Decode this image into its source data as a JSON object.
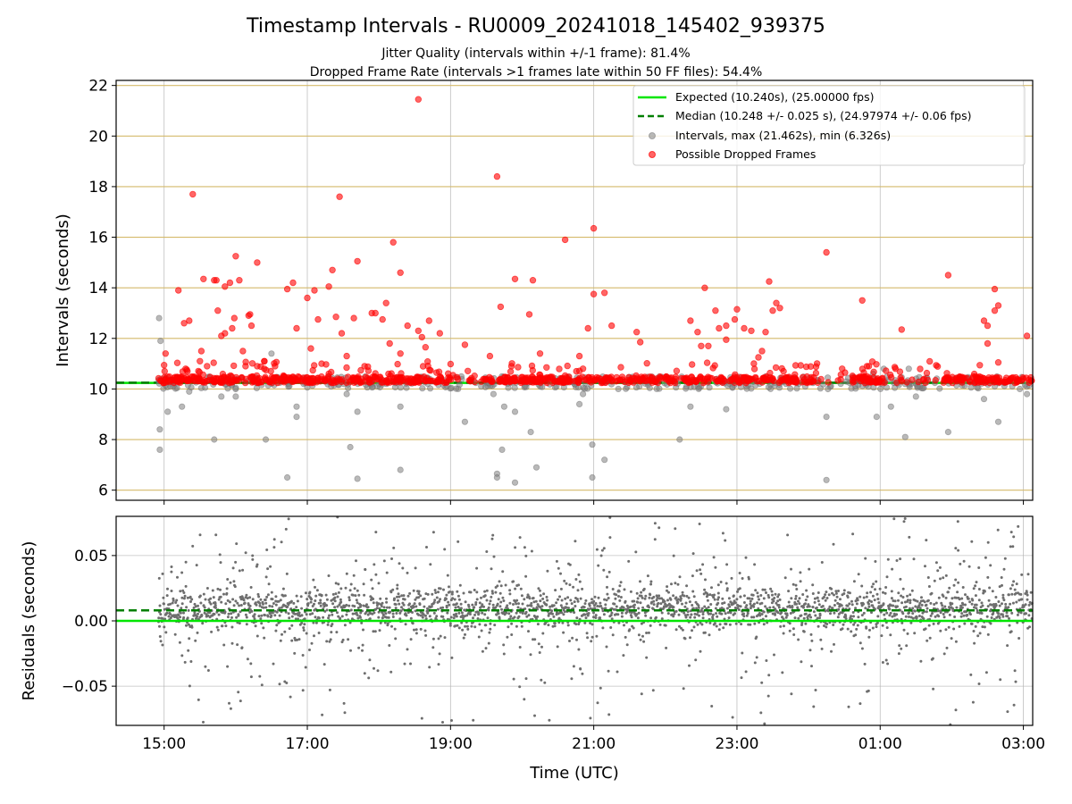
{
  "chart_data": [
    {
      "type": "scatter",
      "title": "Timestamp Intervals - RU0009_20241018_145402_939375",
      "subtitle_lines": [
        "Jitter Quality (intervals within +/-1 frame): 81.4%",
        "Dropped Frame Rate (intervals >1 frames late within 50 FF files): 54.4%"
      ],
      "ylabel": "Intervals (seconds)",
      "xlim_hours": [
        14.33,
        27.13
      ],
      "ylim": [
        5.6,
        22.2
      ],
      "yticks": [
        6,
        8,
        10,
        12,
        14,
        16,
        18,
        20,
        22
      ],
      "ytick_labels": [
        "6",
        "8",
        "10",
        "12",
        "14",
        "16",
        "18",
        "20",
        "22"
      ],
      "ygrid_color": "#d4b96a",
      "xgrid": true,
      "legend_position": "top-right",
      "legend": [
        {
          "label": "Expected (10.240s), (25.00000 fps)",
          "color": "#00e600",
          "style": "solid-line"
        },
        {
          "label": "Median (10.248 +/- 0.025 s), (24.97974 +/- 0.06 fps)",
          "color": "#007f00",
          "style": "dashed-line"
        },
        {
          "label": "Intervals, max (21.462s), min (6.326s)",
          "color": "#808080",
          "style": "marker"
        },
        {
          "label": "Possible Dropped Frames",
          "color": "#ff0000",
          "style": "marker"
        }
      ],
      "expected_interval": 10.24,
      "median_interval": 10.248,
      "dropped_threshold": 10.28,
      "time_range_hours": [
        14.92,
        27.13
      ],
      "max_interval": 21.462,
      "min_interval": 6.326,
      "series": [
        {
          "name": "Intervals, max (21.462s), min (6.326s)",
          "color": "#808080",
          "points": [
            [
              14.93,
              12.8
            ],
            [
              14.95,
              11.9
            ],
            [
              14.94,
              8.4
            ],
            [
              14.94,
              7.6
            ],
            [
              15.05,
              9.1
            ],
            [
              15.25,
              9.3
            ],
            [
              15.35,
              9.9
            ],
            [
              15.7,
              8.0
            ],
            [
              15.8,
              9.7
            ],
            [
              16.0,
              9.7
            ],
            [
              16.42,
              8.0
            ],
            [
              16.5,
              11.4
            ],
            [
              16.72,
              6.5
            ],
            [
              16.85,
              9.3
            ],
            [
              16.85,
              8.9
            ],
            [
              17.55,
              9.8
            ],
            [
              17.6,
              7.7
            ],
            [
              17.7,
              9.1
            ],
            [
              17.7,
              6.45
            ],
            [
              18.3,
              6.8
            ],
            [
              18.3,
              9.3
            ],
            [
              19.2,
              8.7
            ],
            [
              19.6,
              9.8
            ],
            [
              19.65,
              6.65
            ],
            [
              19.65,
              6.5
            ],
            [
              19.72,
              7.6
            ],
            [
              19.75,
              9.3
            ],
            [
              19.9,
              6.3
            ],
            [
              19.9,
              9.1
            ],
            [
              20.12,
              8.3
            ],
            [
              20.2,
              6.9
            ],
            [
              20.8,
              9.4
            ],
            [
              20.85,
              9.8
            ],
            [
              20.98,
              7.8
            ],
            [
              20.98,
              6.5
            ],
            [
              21.15,
              7.2
            ],
            [
              22.2,
              8.0
            ],
            [
              22.35,
              9.3
            ],
            [
              22.85,
              9.2
            ],
            [
              24.25,
              8.9
            ],
            [
              24.25,
              6.4
            ],
            [
              24.65,
              10.4
            ],
            [
              24.9,
              10.6
            ],
            [
              24.95,
              8.9
            ],
            [
              25.05,
              10.8
            ],
            [
              25.15,
              9.3
            ],
            [
              25.35,
              10.2
            ],
            [
              25.4,
              10.8
            ],
            [
              25.5,
              9.7
            ],
            [
              25.35,
              8.1
            ],
            [
              25.95,
              8.3
            ],
            [
              26.45,
              9.6
            ],
            [
              26.65,
              8.7
            ],
            [
              26.95,
              10.0
            ],
            [
              27.05,
              9.8
            ]
          ]
        },
        {
          "name": "Possible Dropped Frames",
          "color": "#ff0000",
          "points": [
            [
              15.02,
              11.4
            ],
            [
              15.2,
              13.9
            ],
            [
              15.28,
              12.6
            ],
            [
              15.3,
              10.8
            ],
            [
              15.35,
              12.7
            ],
            [
              15.4,
              17.7
            ],
            [
              15.5,
              11.1
            ],
            [
              15.52,
              11.5
            ],
            [
              15.55,
              14.35
            ],
            [
              15.6,
              10.9
            ],
            [
              15.7,
              14.3
            ],
            [
              15.73,
              14.3
            ],
            [
              15.75,
              13.1
            ],
            [
              15.8,
              12.1
            ],
            [
              15.85,
              12.2
            ],
            [
              15.85,
              14.05
            ],
            [
              15.92,
              14.2
            ],
            [
              15.95,
              12.4
            ],
            [
              15.98,
              12.8
            ],
            [
              16.0,
              15.25
            ],
            [
              16.05,
              14.3
            ],
            [
              16.1,
              11.5
            ],
            [
              16.18,
              12.9
            ],
            [
              16.2,
              12.95
            ],
            [
              16.22,
              12.5
            ],
            [
              16.3,
              15.0
            ],
            [
              16.3,
              10.9
            ],
            [
              16.4,
              10.8
            ],
            [
              16.4,
              11.1
            ],
            [
              16.55,
              10.9
            ],
            [
              16.72,
              13.95
            ],
            [
              16.8,
              14.2
            ],
            [
              16.85,
              12.4
            ],
            [
              17.0,
              13.6
            ],
            [
              17.05,
              11.6
            ],
            [
              17.1,
              13.9
            ],
            [
              17.15,
              12.75
            ],
            [
              17.2,
              11.0
            ],
            [
              17.3,
              10.6
            ],
            [
              17.3,
              14.05
            ],
            [
              17.35,
              14.7
            ],
            [
              17.4,
              12.85
            ],
            [
              17.45,
              17.6
            ],
            [
              17.48,
              12.2
            ],
            [
              17.55,
              11.3
            ],
            [
              17.65,
              12.8
            ],
            [
              17.7,
              15.05
            ],
            [
              17.8,
              10.9
            ],
            [
              17.9,
              13.0
            ],
            [
              17.95,
              13.0
            ],
            [
              18.05,
              12.75
            ],
            [
              18.1,
              13.4
            ],
            [
              18.15,
              11.8
            ],
            [
              18.2,
              15.8
            ],
            [
              18.3,
              11.4
            ],
            [
              18.3,
              14.6
            ],
            [
              18.4,
              12.5
            ],
            [
              18.55,
              12.3
            ],
            [
              18.55,
              21.45
            ],
            [
              18.6,
              12.05
            ],
            [
              18.65,
              11.65
            ],
            [
              18.7,
              12.7
            ],
            [
              18.85,
              12.2
            ],
            [
              19.2,
              11.75
            ],
            [
              19.55,
              11.3
            ],
            [
              19.65,
              18.4
            ],
            [
              19.7,
              13.25
            ],
            [
              19.85,
              10.9
            ],
            [
              19.9,
              14.35
            ],
            [
              20.1,
              12.95
            ],
            [
              20.15,
              14.3
            ],
            [
              20.25,
              11.4
            ],
            [
              20.6,
              15.9
            ],
            [
              20.8,
              11.3
            ],
            [
              20.85,
              10.8
            ],
            [
              20.92,
              12.4
            ],
            [
              21.0,
              13.75
            ],
            [
              21.0,
              16.35
            ],
            [
              21.15,
              13.8
            ],
            [
              21.25,
              12.5
            ],
            [
              21.6,
              12.25
            ],
            [
              21.65,
              11.85
            ],
            [
              22.35,
              12.7
            ],
            [
              22.45,
              12.25
            ],
            [
              22.5,
              11.7
            ],
            [
              22.55,
              14.0
            ],
            [
              22.6,
              11.7
            ],
            [
              22.7,
              13.1
            ],
            [
              22.75,
              12.4
            ],
            [
              22.85,
              12.5
            ],
            [
              22.85,
              11.95
            ],
            [
              22.97,
              12.75
            ],
            [
              23.0,
              13.15
            ],
            [
              23.1,
              12.4
            ],
            [
              23.2,
              12.3
            ],
            [
              23.3,
              11.25
            ],
            [
              23.35,
              11.5
            ],
            [
              23.4,
              12.25
            ],
            [
              23.45,
              14.25
            ],
            [
              23.5,
              13.1
            ],
            [
              23.55,
              13.4
            ],
            [
              23.6,
              13.2
            ],
            [
              23.65,
              10.7
            ],
            [
              24.25,
              15.4
            ],
            [
              24.75,
              13.5
            ],
            [
              25.3,
              12.35
            ],
            [
              25.95,
              14.5
            ],
            [
              26.5,
              12.5
            ],
            [
              26.45,
              12.7
            ],
            [
              26.5,
              11.8
            ],
            [
              26.6,
              13.95
            ],
            [
              26.6,
              13.1
            ],
            [
              26.65,
              13.3
            ],
            [
              26.65,
              11.05
            ],
            [
              27.05,
              12.1
            ]
          ]
        }
      ]
    },
    {
      "type": "scatter",
      "xlabel": "Time (UTC)",
      "ylabel": "Residuals (seconds)",
      "xlim_hours": [
        14.33,
        27.13
      ],
      "ylim": [
        -0.08,
        0.08
      ],
      "yticks": [
        -0.05,
        0.0,
        0.05
      ],
      "ytick_labels": [
        "−0.05",
        "0.00",
        "0.05"
      ],
      "xticks_hours": [
        15,
        17,
        19,
        21,
        23,
        25,
        27
      ],
      "xtick_labels": [
        "15:00",
        "17:00",
        "19:00",
        "21:00",
        "23:00",
        "01:00",
        "03:00"
      ],
      "grid": true,
      "expected_residual": 0.0,
      "median_residual": 0.008,
      "series": [
        {
          "name": "Residuals",
          "color": "#6e6e6e",
          "time_range_hours": [
            14.92,
            27.13
          ],
          "point_count": 2600,
          "core_center": 0.009,
          "core_spread": 0.008,
          "outlier_range": [
            -0.08,
            0.08
          ]
        }
      ]
    }
  ]
}
